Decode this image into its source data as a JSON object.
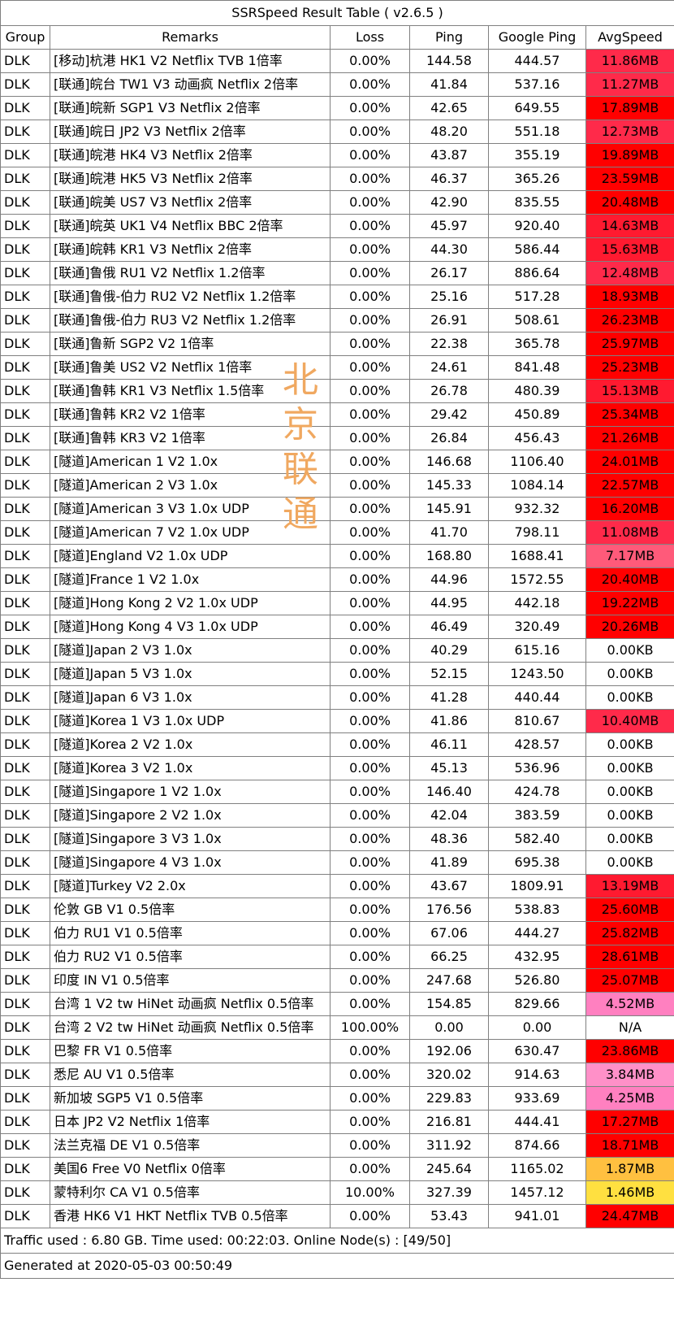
{
  "title": "SSRSpeed Result Table ( v2.6.5 )",
  "headers": {
    "group": "Group",
    "remarks": "Remarks",
    "loss": "Loss",
    "ping": "Ping",
    "google_ping": "Google Ping",
    "avg_speed": "AvgSpeed"
  },
  "watermark": [
    "北",
    "京",
    "联",
    "通"
  ],
  "colors": {
    "red": "#ff0000",
    "crimson": "#ff2a4a",
    "pink_red": "#ff5a7a",
    "pink": "#ff80c0",
    "light_pink": "#ff90c8",
    "orange": "#ffc040",
    "yellow": "#ffe040",
    "white": "#ffffff",
    "watermark": "#f0a860"
  },
  "rows": [
    {
      "group": "DLK",
      "remarks": "[移动]杭港 HK1 V2 Netflix TVB 1倍率",
      "loss": "0.00%",
      "ping": "144.58",
      "google_ping": "444.57",
      "speed": "11.86MB",
      "color": "#ff2a4a"
    },
    {
      "group": "DLK",
      "remarks": "[联通]皖台 TW1 V3 动画疯 Netflix 2倍率",
      "loss": "0.00%",
      "ping": "41.84",
      "google_ping": "537.16",
      "speed": "11.27MB",
      "color": "#ff2a4a"
    },
    {
      "group": "DLK",
      "remarks": "[联通]皖新 SGP1 V3 Netflix 2倍率",
      "loss": "0.00%",
      "ping": "42.65",
      "google_ping": "649.55",
      "speed": "17.89MB",
      "color": "#ff0000"
    },
    {
      "group": "DLK",
      "remarks": "[联通]皖日 JP2 V3 Netflix 2倍率",
      "loss": "0.00%",
      "ping": "48.20",
      "google_ping": "551.18",
      "speed": "12.73MB",
      "color": "#ff2a4a"
    },
    {
      "group": "DLK",
      "remarks": "[联通]皖港 HK4 V3 Netflix 2倍率",
      "loss": "0.00%",
      "ping": "43.87",
      "google_ping": "355.19",
      "speed": "19.89MB",
      "color": "#ff0000"
    },
    {
      "group": "DLK",
      "remarks": "[联通]皖港 HK5 V3 Netflix 2倍率",
      "loss": "0.00%",
      "ping": "46.37",
      "google_ping": "365.26",
      "speed": "23.59MB",
      "color": "#ff0000"
    },
    {
      "group": "DLK",
      "remarks": "[联通]皖美 US7 V3 Netflix 2倍率",
      "loss": "0.00%",
      "ping": "42.90",
      "google_ping": "835.55",
      "speed": "20.48MB",
      "color": "#ff0000"
    },
    {
      "group": "DLK",
      "remarks": "[联通]皖英 UK1 V4 Netflix BBC 2倍率",
      "loss": "0.00%",
      "ping": "45.97",
      "google_ping": "920.40",
      "speed": "14.63MB",
      "color": "#ff1a30"
    },
    {
      "group": "DLK",
      "remarks": "[联通]皖韩 KR1 V3 Netflix 2倍率",
      "loss": "0.00%",
      "ping": "44.30",
      "google_ping": "586.44",
      "speed": "15.63MB",
      "color": "#ff1a30"
    },
    {
      "group": "DLK",
      "remarks": "[联通]鲁俄 RU1 V2 Netflix 1.2倍率",
      "loss": "0.00%",
      "ping": "26.17",
      "google_ping": "886.64",
      "speed": "12.48MB",
      "color": "#ff2a4a"
    },
    {
      "group": "DLK",
      "remarks": "[联通]鲁俄-伯力 RU2 V2 Netflix 1.2倍率",
      "loss": "0.00%",
      "ping": "25.16",
      "google_ping": "517.28",
      "speed": "18.93MB",
      "color": "#ff0000"
    },
    {
      "group": "DLK",
      "remarks": "[联通]鲁俄-伯力 RU3 V2 Netflix 1.2倍率",
      "loss": "0.00%",
      "ping": "26.91",
      "google_ping": "508.61",
      "speed": "26.23MB",
      "color": "#ff0000"
    },
    {
      "group": "DLK",
      "remarks": "[联通]鲁新 SGP2 V2 1倍率",
      "loss": "0.00%",
      "ping": "22.38",
      "google_ping": "365.78",
      "speed": "25.97MB",
      "color": "#ff0000"
    },
    {
      "group": "DLK",
      "remarks": "[联通]鲁美 US2 V2 Netflix 1倍率",
      "loss": "0.00%",
      "ping": "24.61",
      "google_ping": "841.48",
      "speed": "25.23MB",
      "color": "#ff0000"
    },
    {
      "group": "DLK",
      "remarks": "[联通]鲁韩 KR1 V3 Netflix 1.5倍率",
      "loss": "0.00%",
      "ping": "26.78",
      "google_ping": "480.39",
      "speed": "15.13MB",
      "color": "#ff1a30"
    },
    {
      "group": "DLK",
      "remarks": "[联通]鲁韩 KR2 V2 1倍率",
      "loss": "0.00%",
      "ping": "29.42",
      "google_ping": "450.89",
      "speed": "25.34MB",
      "color": "#ff0000"
    },
    {
      "group": "DLK",
      "remarks": "[联通]鲁韩 KR3 V2 1倍率",
      "loss": "0.00%",
      "ping": "26.84",
      "google_ping": "456.43",
      "speed": "21.26MB",
      "color": "#ff0000"
    },
    {
      "group": "DLK",
      "remarks": "[隧道]American 1 V2 1.0x",
      "loss": "0.00%",
      "ping": "146.68",
      "google_ping": "1106.40",
      "speed": "24.01MB",
      "color": "#ff0000"
    },
    {
      "group": "DLK",
      "remarks": "[隧道]American 2 V3 1.0x",
      "loss": "0.00%",
      "ping": "145.33",
      "google_ping": "1084.14",
      "speed": "22.57MB",
      "color": "#ff0000"
    },
    {
      "group": "DLK",
      "remarks": "[隧道]American 3 V3 1.0x UDP",
      "loss": "0.00%",
      "ping": "145.91",
      "google_ping": "932.32",
      "speed": "16.20MB",
      "color": "#ff0000"
    },
    {
      "group": "DLK",
      "remarks": "[隧道]American 7 V2 1.0x UDP",
      "loss": "0.00%",
      "ping": "41.70",
      "google_ping": "798.11",
      "speed": "11.08MB",
      "color": "#ff2a4a"
    },
    {
      "group": "DLK",
      "remarks": "[隧道]England V2 1.0x UDP",
      "loss": "0.00%",
      "ping": "168.80",
      "google_ping": "1688.41",
      "speed": "7.17MB",
      "color": "#ff5a7a"
    },
    {
      "group": "DLK",
      "remarks": "[隧道]France 1 V2 1.0x",
      "loss": "0.00%",
      "ping": "44.96",
      "google_ping": "1572.55",
      "speed": "20.40MB",
      "color": "#ff0000"
    },
    {
      "group": "DLK",
      "remarks": "[隧道]Hong Kong 2 V2 1.0x UDP",
      "loss": "0.00%",
      "ping": "44.95",
      "google_ping": "442.18",
      "speed": "19.22MB",
      "color": "#ff0000"
    },
    {
      "group": "DLK",
      "remarks": "[隧道]Hong Kong 4 V3 1.0x UDP",
      "loss": "0.00%",
      "ping": "46.49",
      "google_ping": "320.49",
      "speed": "20.26MB",
      "color": "#ff0000"
    },
    {
      "group": "DLK",
      "remarks": "[隧道]Japan 2 V3 1.0x",
      "loss": "0.00%",
      "ping": "40.29",
      "google_ping": "615.16",
      "speed": "0.00KB",
      "color": "#ffffff"
    },
    {
      "group": "DLK",
      "remarks": "[隧道]Japan 5 V3 1.0x",
      "loss": "0.00%",
      "ping": "52.15",
      "google_ping": "1243.50",
      "speed": "0.00KB",
      "color": "#ffffff"
    },
    {
      "group": "DLK",
      "remarks": "[隧道]Japan 6 V3 1.0x",
      "loss": "0.00%",
      "ping": "41.28",
      "google_ping": "440.44",
      "speed": "0.00KB",
      "color": "#ffffff"
    },
    {
      "group": "DLK",
      "remarks": "[隧道]Korea 1 V3 1.0x UDP",
      "loss": "0.00%",
      "ping": "41.86",
      "google_ping": "810.67",
      "speed": "10.40MB",
      "color": "#ff2a4a"
    },
    {
      "group": "DLK",
      "remarks": "[隧道]Korea 2 V2 1.0x",
      "loss": "0.00%",
      "ping": "46.11",
      "google_ping": "428.57",
      "speed": "0.00KB",
      "color": "#ffffff"
    },
    {
      "group": "DLK",
      "remarks": "[隧道]Korea 3 V2 1.0x",
      "loss": "0.00%",
      "ping": "45.13",
      "google_ping": "536.96",
      "speed": "0.00KB",
      "color": "#ffffff"
    },
    {
      "group": "DLK",
      "remarks": "[隧道]Singapore 1 V2 1.0x",
      "loss": "0.00%",
      "ping": "146.40",
      "google_ping": "424.78",
      "speed": "0.00KB",
      "color": "#ffffff"
    },
    {
      "group": "DLK",
      "remarks": "[隧道]Singapore 2 V2 1.0x",
      "loss": "0.00%",
      "ping": "42.04",
      "google_ping": "383.59",
      "speed": "0.00KB",
      "color": "#ffffff"
    },
    {
      "group": "DLK",
      "remarks": "[隧道]Singapore 3 V3 1.0x",
      "loss": "0.00%",
      "ping": "48.36",
      "google_ping": "582.40",
      "speed": "0.00KB",
      "color": "#ffffff"
    },
    {
      "group": "DLK",
      "remarks": "[隧道]Singapore 4 V3 1.0x",
      "loss": "0.00%",
      "ping": "41.89",
      "google_ping": "695.38",
      "speed": "0.00KB",
      "color": "#ffffff"
    },
    {
      "group": "DLK",
      "remarks": "[隧道]Turkey V2 2.0x",
      "loss": "0.00%",
      "ping": "43.67",
      "google_ping": "1809.91",
      "speed": "13.19MB",
      "color": "#ff1a30"
    },
    {
      "group": "DLK",
      "remarks": "伦敦 GB V1 0.5倍率",
      "loss": "0.00%",
      "ping": "176.56",
      "google_ping": "538.83",
      "speed": "25.60MB",
      "color": "#ff0000"
    },
    {
      "group": "DLK",
      "remarks": "伯力 RU1 V1 0.5倍率",
      "loss": "0.00%",
      "ping": "67.06",
      "google_ping": "444.27",
      "speed": "25.82MB",
      "color": "#ff0000"
    },
    {
      "group": "DLK",
      "remarks": "伯力 RU2 V1 0.5倍率",
      "loss": "0.00%",
      "ping": "66.25",
      "google_ping": "432.95",
      "speed": "28.61MB",
      "color": "#ff0000"
    },
    {
      "group": "DLK",
      "remarks": "印度 IN V1 0.5倍率",
      "loss": "0.00%",
      "ping": "247.68",
      "google_ping": "526.80",
      "speed": "25.07MB",
      "color": "#ff0000"
    },
    {
      "group": "DLK",
      "remarks": "台湾 1 V2 tw HiNet 动画疯 Netflix 0.5倍率",
      "loss": "0.00%",
      "ping": "154.85",
      "google_ping": "829.66",
      "speed": "4.52MB",
      "color": "#ff80c0"
    },
    {
      "group": "DLK",
      "remarks": "台湾 2 V2 tw HiNet 动画疯 Netflix 0.5倍率",
      "loss": "100.00%",
      "ping": "0.00",
      "google_ping": "0.00",
      "speed": "N/A",
      "color": "#ffffff"
    },
    {
      "group": "DLK",
      "remarks": "巴黎 FR V1 0.5倍率",
      "loss": "0.00%",
      "ping": "192.06",
      "google_ping": "630.47",
      "speed": "23.86MB",
      "color": "#ff0000"
    },
    {
      "group": "DLK",
      "remarks": "悉尼 AU V1 0.5倍率",
      "loss": "0.00%",
      "ping": "320.02",
      "google_ping": "914.63",
      "speed": "3.84MB",
      "color": "#ff90c8"
    },
    {
      "group": "DLK",
      "remarks": "新加坡 SGP5 V1 0.5倍率",
      "loss": "0.00%",
      "ping": "229.83",
      "google_ping": "933.69",
      "speed": "4.25MB",
      "color": "#ff80c0"
    },
    {
      "group": "DLK",
      "remarks": "日本 JP2 V2 Netflix 1倍率",
      "loss": "0.00%",
      "ping": "216.81",
      "google_ping": "444.41",
      "speed": "17.27MB",
      "color": "#ff0000"
    },
    {
      "group": "DLK",
      "remarks": "法兰克福 DE V1 0.5倍率",
      "loss": "0.00%",
      "ping": "311.92",
      "google_ping": "874.66",
      "speed": "18.71MB",
      "color": "#ff0000"
    },
    {
      "group": "DLK",
      "remarks": "美国6 Free V0 Netflix 0倍率",
      "loss": "0.00%",
      "ping": "245.64",
      "google_ping": "1165.02",
      "speed": "1.87MB",
      "color": "#ffc040"
    },
    {
      "group": "DLK",
      "remarks": "蒙特利尔 CA V1 0.5倍率",
      "loss": "10.00%",
      "ping": "327.39",
      "google_ping": "1457.12",
      "speed": "1.46MB",
      "color": "#ffe040"
    },
    {
      "group": "DLK",
      "remarks": "香港 HK6 V1 HKT Netflix TVB 0.5倍率",
      "loss": "0.00%",
      "ping": "53.43",
      "google_ping": "941.01",
      "speed": "24.47MB",
      "color": "#ff0000"
    }
  ],
  "footer": {
    "traffic": "Traffic used : 6.80 GB. Time used: 00:22:03. Online Node(s) : [49/50]",
    "generated": "Generated at 2020-05-03 00:50:49"
  }
}
